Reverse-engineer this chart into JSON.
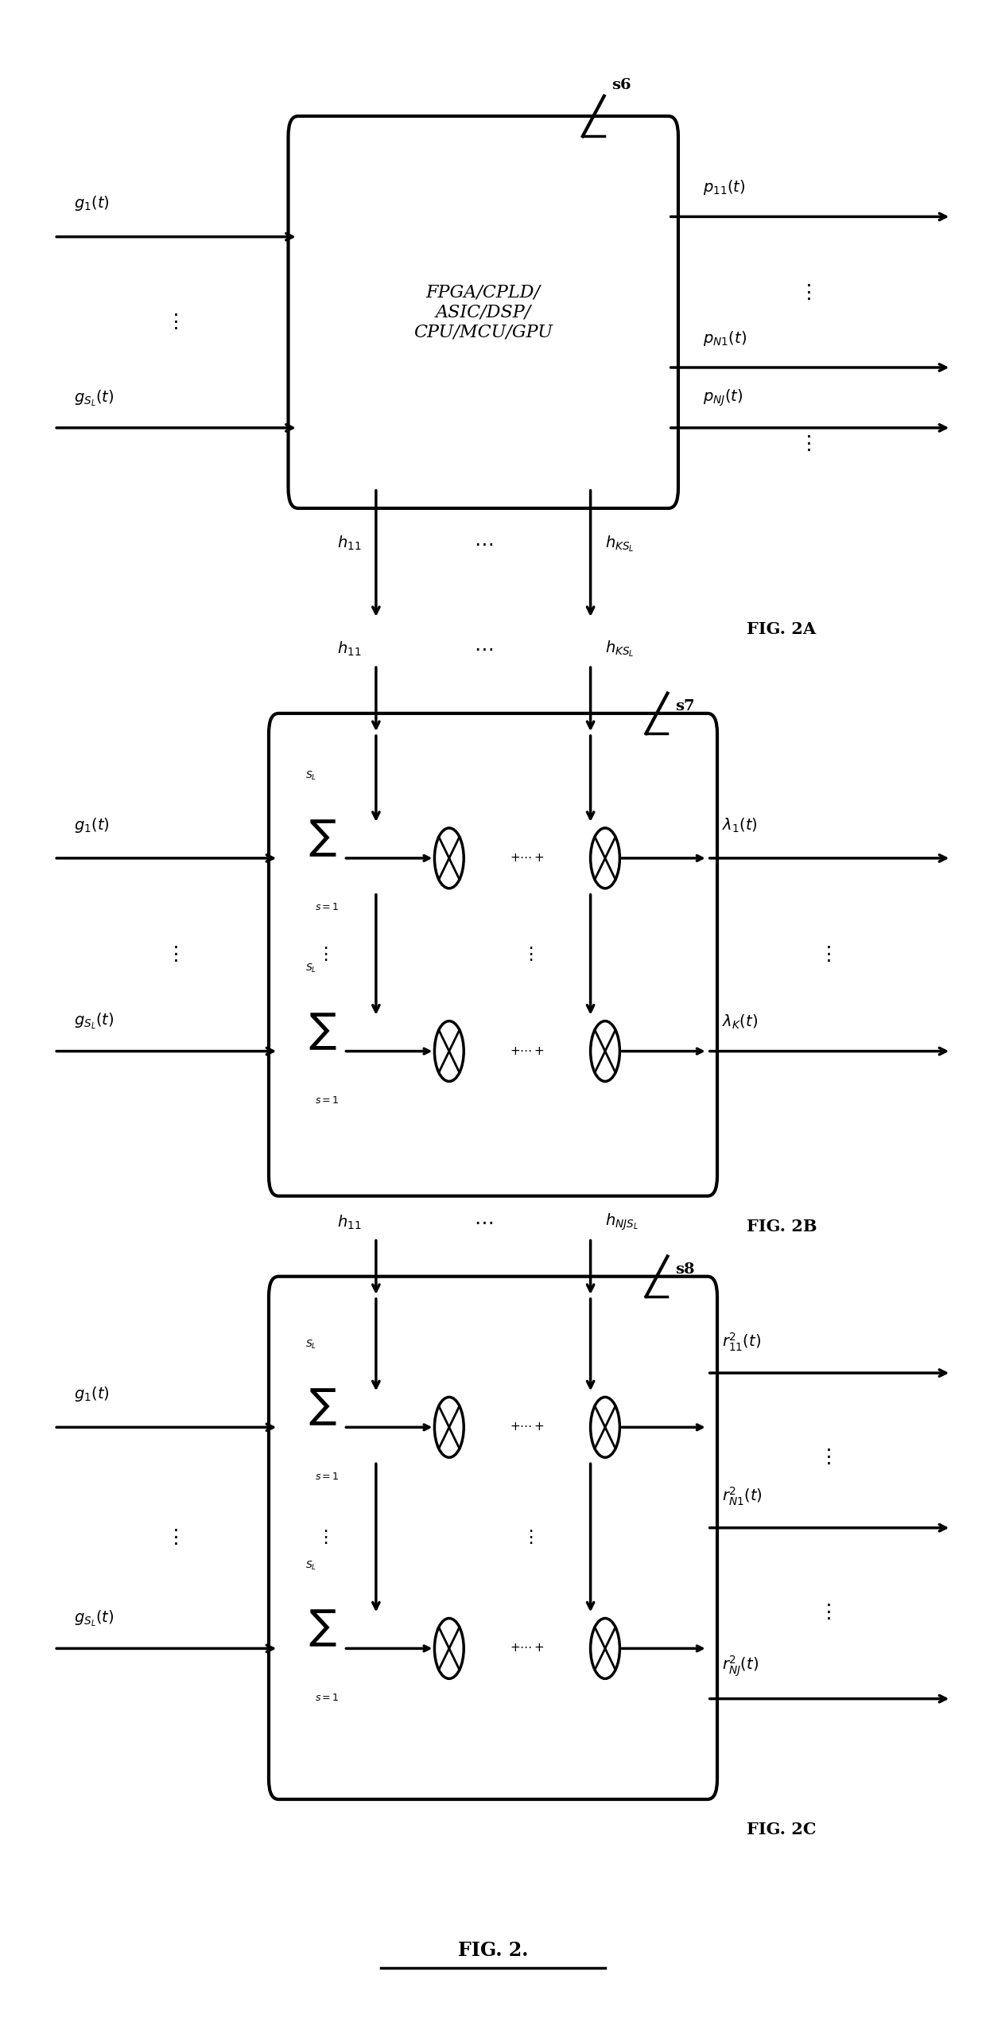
{
  "fig_width": 12.4,
  "fig_height": 25.42,
  "bg_color": "#ffffff",
  "line_color": "#000000",
  "text_color": "#000000",
  "lw": 2.5,
  "arrow_lw": 2.5,
  "fig2a_box_label": "FPGA/CPLD/\nASIC/DSP/\nCPU/MCU/GPU",
  "s6_label": "s6",
  "s7_label": "s7",
  "s8_label": "s8",
  "fig2a_label": "FIG. 2A",
  "fig2b_label": "FIG. 2B",
  "fig2c_label": "FIG. 2C",
  "bottom_label": "FIG. 2."
}
